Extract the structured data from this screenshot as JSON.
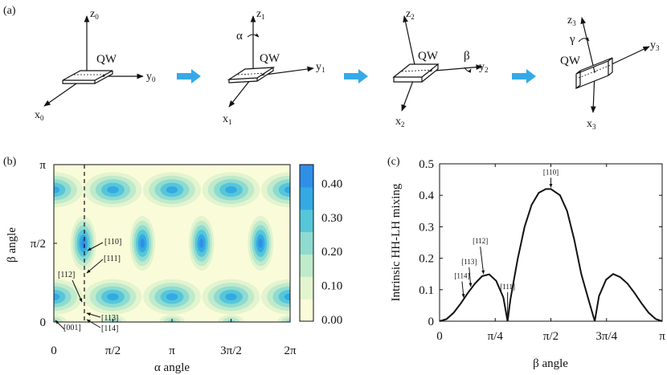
{
  "panel_labels": {
    "a": "(a)",
    "b": "(b)",
    "c": "(c)"
  },
  "panel_a": {
    "qw": "QW",
    "axes": [
      {
        "z": "z",
        "zs": "0",
        "y": "y",
        "ys": "0",
        "x": "x",
        "xs": "0"
      },
      {
        "z": "z",
        "zs": "1",
        "y": "y",
        "ys": "1",
        "x": "x",
        "xs": "1",
        "angle": "α"
      },
      {
        "z": "z",
        "zs": "2",
        "y": "y",
        "ys": "2",
        "x": "x",
        "xs": "2",
        "angle": "β"
      },
      {
        "z": "z",
        "zs": "3",
        "y": "y",
        "ys": "3",
        "x": "x",
        "xs": "3",
        "angle": "γ"
      }
    ],
    "arrow_color": "#35a9e8"
  },
  "panel_b": {
    "xlabel": "α angle",
    "ylabel": "β angle",
    "xticks": [
      "0",
      "π/2",
      "π",
      "3π/2",
      "2π"
    ],
    "yticks": [
      "0",
      "π/2",
      "π"
    ],
    "colorbar_ticks": [
      "0.00",
      "0.10",
      "0.20",
      "0.30",
      "0.40"
    ],
    "annotations": [
      "[001]",
      "[114]",
      "[113]",
      "[112]",
      "[111]",
      "[110]"
    ],
    "colors": [
      "#fafcd9",
      "#e3f4cf",
      "#bfeacb",
      "#8fdbd0",
      "#56c6d9",
      "#34a9e3",
      "#2f8fe6"
    ]
  },
  "chart_data": {
    "type": "line",
    "title": "",
    "xlabel": "β angle",
    "ylabel": "Intrinsic HH-LH mixing",
    "xlim": [
      0,
      3.14159
    ],
    "ylim": [
      0,
      0.5
    ],
    "xtick_labels": [
      "0",
      "π/4",
      "π/2",
      "3π/4",
      "π"
    ],
    "ytick_labels": [
      "0",
      "0.1",
      "0.2",
      "0.3",
      "0.4",
      "0.5"
    ],
    "x": [
      0,
      0.1,
      0.2,
      0.3,
      0.4,
      0.5,
      0.6,
      0.7,
      0.8,
      0.9,
      0.96,
      1.0,
      1.1,
      1.2,
      1.3,
      1.4,
      1.5,
      1.571,
      1.7,
      1.8,
      1.9,
      2.0,
      2.1,
      2.19,
      2.25,
      2.35,
      2.45,
      2.55,
      2.65,
      2.75,
      2.85,
      2.95,
      3.05,
      3.14159
    ],
    "y": [
      0,
      0.007,
      0.027,
      0.057,
      0.09,
      0.12,
      0.143,
      0.149,
      0.128,
      0.075,
      0.0,
      0.07,
      0.195,
      0.3,
      0.37,
      0.408,
      0.42,
      0.42,
      0.4,
      0.35,
      0.26,
      0.15,
      0.07,
      0.0,
      0.08,
      0.132,
      0.15,
      0.14,
      0.12,
      0.09,
      0.057,
      0.027,
      0.007,
      0
    ],
    "annotations": [
      {
        "label": "[114]",
        "x": 0.34,
        "y": 0.07
      },
      {
        "label": "[113]",
        "x": 0.44,
        "y": 0.105
      },
      {
        "label": "[112]",
        "x": 0.62,
        "y": 0.145
      },
      {
        "label": "[111]",
        "x": 0.96,
        "y": 0.0
      },
      {
        "label": "[110]",
        "x": 1.571,
        "y": 0.42
      }
    ]
  }
}
